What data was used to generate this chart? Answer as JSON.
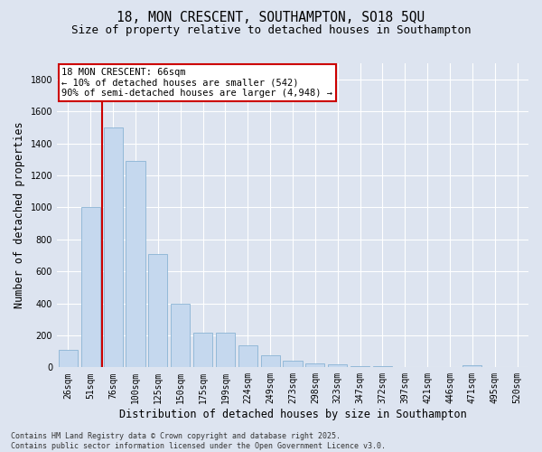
{
  "title_line1": "18, MON CRESCENT, SOUTHAMPTON, SO18 5QU",
  "title_line2": "Size of property relative to detached houses in Southampton",
  "xlabel": "Distribution of detached houses by size in Southampton",
  "ylabel": "Number of detached properties",
  "categories": [
    "26sqm",
    "51sqm",
    "76sqm",
    "100sqm",
    "125sqm",
    "150sqm",
    "175sqm",
    "199sqm",
    "224sqm",
    "249sqm",
    "273sqm",
    "298sqm",
    "323sqm",
    "347sqm",
    "372sqm",
    "397sqm",
    "421sqm",
    "446sqm",
    "471sqm",
    "495sqm",
    "520sqm"
  ],
  "values": [
    110,
    1000,
    1500,
    1290,
    710,
    400,
    215,
    215,
    140,
    75,
    40,
    25,
    20,
    5,
    5,
    0,
    0,
    0,
    15,
    0,
    0
  ],
  "bar_color": "#c5d8ee",
  "bar_edge_color": "#8ab4d4",
  "bg_color": "#dde4f0",
  "grid_color": "#ffffff",
  "annotation_box_text": "18 MON CRESCENT: 66sqm\n← 10% of detached houses are smaller (542)\n90% of semi-detached houses are larger (4,948) →",
  "annotation_box_color": "#ffffff",
  "annotation_box_edge_color": "#cc0000",
  "vline_color": "#cc0000",
  "ylim": [
    0,
    1900
  ],
  "yticks": [
    0,
    200,
    400,
    600,
    800,
    1000,
    1200,
    1400,
    1600,
    1800
  ],
  "footer_line1": "Contains HM Land Registry data © Crown copyright and database right 2025.",
  "footer_line2": "Contains public sector information licensed under the Open Government Licence v3.0.",
  "title_fontsize": 10.5,
  "subtitle_fontsize": 9,
  "axis_label_fontsize": 8.5,
  "tick_fontsize": 7,
  "annotation_fontsize": 7.5,
  "footer_fontsize": 6
}
